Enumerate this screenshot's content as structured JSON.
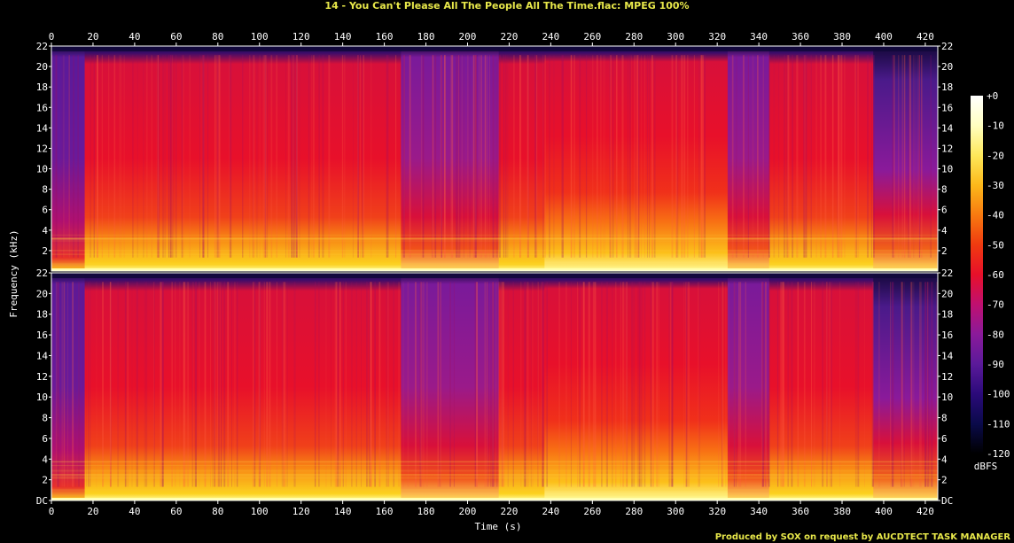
{
  "header": {
    "title": "14 - You Can't Please All The People All The Time.flac: MPEG 100%"
  },
  "footer": {
    "credit": "Produced by SOX on request by AUCDTECT TASK MANAGER"
  },
  "chart_data": {
    "type": "heatmap",
    "title": "14 - You Can't Please All The People All The Time.flac: MPEG 100%",
    "xlabel": "Time (s)",
    "ylabel": "Frequency (kHz)",
    "xlim": [
      0,
      426
    ],
    "ylim": [
      0,
      22
    ],
    "x_ticks": [
      0,
      20,
      40,
      60,
      80,
      100,
      120,
      140,
      160,
      180,
      200,
      220,
      240,
      260,
      280,
      300,
      320,
      340,
      360,
      380,
      400,
      420
    ],
    "y_ticks_top": [
      "22",
      "20",
      "18",
      "16",
      "14",
      "12",
      "10",
      "8",
      "6",
      "4",
      "2"
    ],
    "y_ticks_bottom": [
      "22",
      "20",
      "18",
      "16",
      "14",
      "12",
      "10",
      "8",
      "6",
      "4",
      "2",
      "DC"
    ],
    "channels": 2,
    "colorbar": {
      "label": "dBFS",
      "ticks": [
        "+0",
        "-10",
        "-20",
        "-30",
        "-40",
        "-50",
        "-60",
        "-70",
        "-80",
        "-90",
        "-100",
        "-110",
        "-120"
      ],
      "range": [
        -120,
        0
      ],
      "colors": [
        "#000000",
        "#0a0a4a",
        "#2b0a7a",
        "#5b1a9a",
        "#8a1a9a",
        "#c01070",
        "#e8102a",
        "#f03a10",
        "#f87a10",
        "#fcb81a",
        "#fde85a",
        "#ffffc0",
        "#ffffff"
      ]
    },
    "segments": [
      {
        "start": 0,
        "end": 16,
        "level": "quiet"
      },
      {
        "start": 16,
        "end": 168,
        "level": "loud"
      },
      {
        "start": 168,
        "end": 215,
        "level": "medium"
      },
      {
        "start": 215,
        "end": 237,
        "level": "loud"
      },
      {
        "start": 237,
        "end": 325,
        "level": "loud-bright"
      },
      {
        "start": 325,
        "end": 345,
        "level": "medium"
      },
      {
        "start": 345,
        "end": 395,
        "level": "loud"
      },
      {
        "start": 395,
        "end": 426,
        "level": "fade"
      }
    ]
  }
}
